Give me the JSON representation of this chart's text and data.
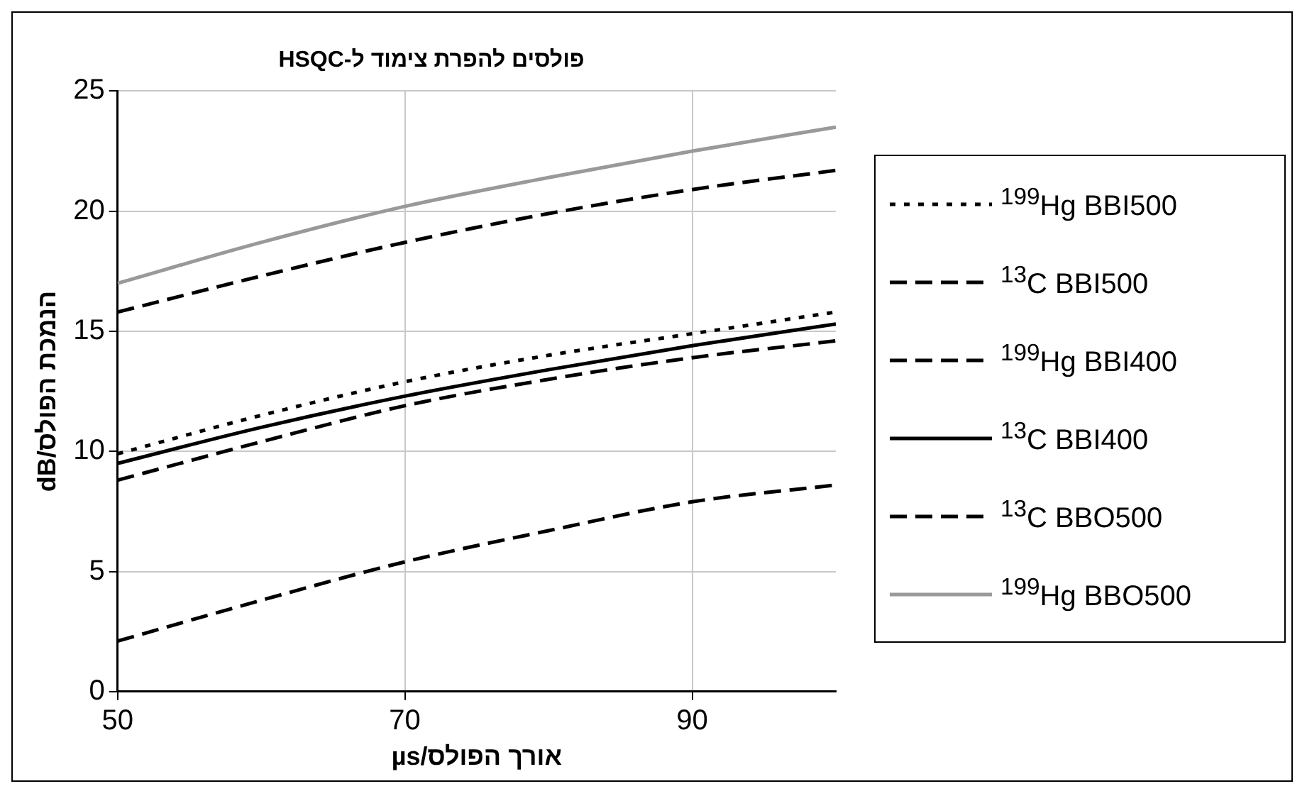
{
  "chart_data": {
    "type": "line",
    "title": "פולסים להפרת צימוד ל-HSQC",
    "xlabel": "אורך הפולס/µs",
    "ylabel": "הנמכת הפולס/dB",
    "x": [
      50,
      60,
      70,
      80,
      90,
      100
    ],
    "xlim": [
      50,
      100
    ],
    "xticks": [
      50,
      70,
      90
    ],
    "ylim": [
      0,
      25
    ],
    "yticks": [
      0,
      5,
      10,
      15,
      20,
      25
    ],
    "grid": true,
    "legend": "right",
    "marker": "none",
    "series": [
      {
        "name": "$^{199}$Hg BBI500",
        "color": "#000000",
        "line_style": "dotted",
        "values": [
          9.9,
          11.5,
          12.9,
          14.0,
          14.9,
          15.8
        ]
      },
      {
        "name": "$^{13}$C BBI500",
        "color": "#000000",
        "line_style": "dashed",
        "values": [
          8.8,
          10.4,
          11.9,
          13.0,
          13.9,
          14.6
        ]
      },
      {
        "name": "$^{199}$Hg BBI400",
        "color": "#000000",
        "line_style": "dashed",
        "values": [
          2.1,
          3.8,
          5.4,
          6.7,
          7.9,
          8.6
        ]
      },
      {
        "name": "$^{13}$C BBI400",
        "color": "#000000",
        "line_style": "solid",
        "values": [
          9.5,
          11.0,
          12.3,
          13.4,
          14.4,
          15.3
        ]
      },
      {
        "name": "$^{13}$C BBO500",
        "color": "#000000",
        "line_style": "dashed",
        "values": [
          15.8,
          17.3,
          18.7,
          19.9,
          20.9,
          21.7
        ]
      },
      {
        "name": "$^{199}$Hg BBO500",
        "color": "#999999",
        "line_style": "solid",
        "values": [
          17.0,
          18.7,
          20.2,
          21.4,
          22.5,
          23.5
        ]
      }
    ]
  }
}
